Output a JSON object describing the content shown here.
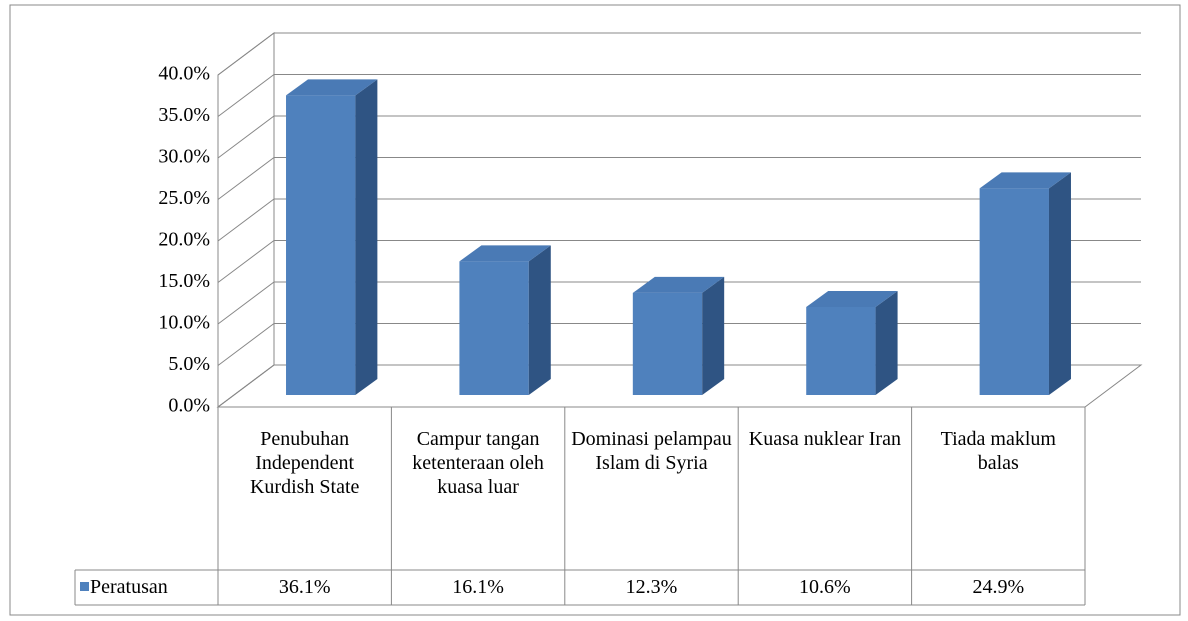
{
  "chart_data": {
    "type": "bar3d",
    "categories": [
      "Penubuhan Independent Kurdish State",
      "Campur tangan ketenteraan oleh kuasa luar",
      "Dominasi pelampau Islam di Syria",
      "Kuasa nuklear Iran",
      "Tiada maklum balas"
    ],
    "series": [
      {
        "name": "Peratusan",
        "color": "#4f81bd",
        "values": [
          36.1,
          16.1,
          12.3,
          10.6,
          24.9
        ],
        "value_labels": [
          "36.1%",
          "16.1%",
          "12.3%",
          "10.6%",
          "24.9%"
        ]
      }
    ],
    "ylim": [
      0,
      40
    ],
    "yticks": [
      {
        "value": 0,
        "label": "0.0%"
      },
      {
        "value": 5,
        "label": "5.0%"
      },
      {
        "value": 10,
        "label": "10.0%"
      },
      {
        "value": 15,
        "label": "15.0%"
      },
      {
        "value": 20,
        "label": "20.0%"
      },
      {
        "value": 25,
        "label": "25.0%"
      },
      {
        "value": 30,
        "label": "30.0%"
      },
      {
        "value": 35,
        "label": "35.0%"
      },
      {
        "value": 40,
        "label": "40.0%"
      }
    ],
    "grid": true,
    "legend": "data-table"
  }
}
